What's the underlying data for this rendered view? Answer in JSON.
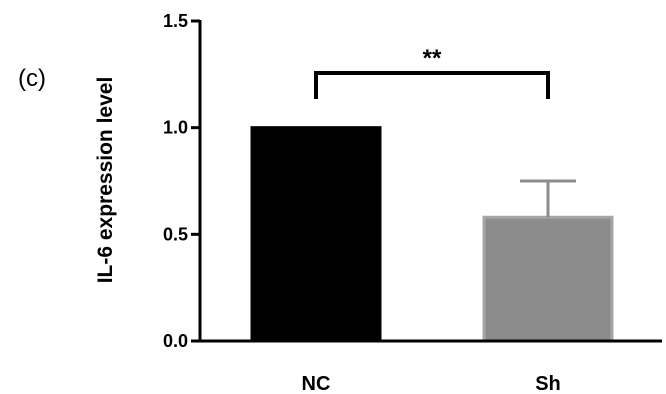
{
  "panel_label": "(c)",
  "chart_data": {
    "type": "bar",
    "categories": [
      "NC",
      "Sh"
    ],
    "values": [
      1.0,
      0.58
    ],
    "error_upper": [
      0,
      0.17
    ],
    "bar_colors": [
      "#000000",
      "#8c8c8c"
    ],
    "title": "",
    "xlabel": "",
    "ylabel": "IL-6 expression level",
    "ylim": [
      0,
      1.5
    ],
    "yticks": [
      0.0,
      0.5,
      1.0,
      1.5
    ],
    "ytick_labels": [
      "0.0",
      "0.5",
      "1.0",
      "1.5"
    ],
    "grid": false,
    "significance": {
      "from": "NC",
      "to": "Sh",
      "label": "**"
    }
  }
}
